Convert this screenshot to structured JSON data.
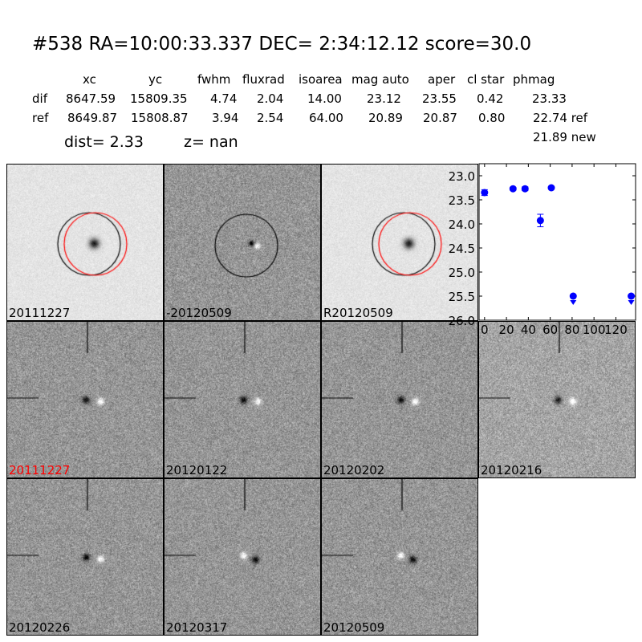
{
  "header": {
    "title": "#538   RA=10:00:33.337 DEC= 2:34:12.12      score=30.0"
  },
  "table": {
    "columns": [
      "xc",
      "yc",
      "fwhm",
      "fluxrad",
      "isoarea",
      "mag auto",
      "aper",
      "cl star",
      "phmag"
    ],
    "rows": [
      {
        "label": "dif",
        "values": [
          "8647.59",
          "15809.35",
          "4.74",
          "2.04",
          "14.00",
          "23.12",
          "23.55",
          "0.42",
          "23.33"
        ]
      },
      {
        "label": "ref",
        "values": [
          "8649.87",
          "15808.87",
          "3.94",
          "2.54",
          "64.00",
          "20.89",
          "20.87",
          "0.80",
          "22.74 ref"
        ]
      }
    ],
    "extra": "21.89 new",
    "dist": "dist=  2.33",
    "z": "z=   nan"
  },
  "stamps": [
    {
      "label": "20111227",
      "kind": "ref",
      "label_color": "#000000"
    },
    {
      "label": "-20120509",
      "kind": "diff",
      "label_color": "#000000"
    },
    {
      "label": "R20120509",
      "kind": "ref",
      "label_color": "#000000"
    },
    {
      "label": "20111227",
      "kind": "epoch",
      "label_color": "#ff0000"
    },
    {
      "label": "20120122",
      "kind": "epoch",
      "label_color": "#000000"
    },
    {
      "label": "20120202",
      "kind": "epoch",
      "label_color": "#000000"
    },
    {
      "label": "20120216",
      "kind": "epoch",
      "label_color": "#000000"
    },
    {
      "label": "20120226",
      "kind": "epoch",
      "label_color": "#000000"
    },
    {
      "label": "20120317",
      "kind": "epoch2",
      "label_color": "#000000"
    },
    {
      "label": "20120509",
      "kind": "epoch2",
      "label_color": "#000000"
    }
  ],
  "chart_data": {
    "type": "scatter",
    "x": [
      0,
      26,
      37,
      51,
      61,
      81,
      134
    ],
    "y": [
      23.35,
      23.27,
      23.27,
      23.93,
      23.25,
      25.5,
      25.5
    ],
    "yerr": [
      0.06,
      0.03,
      0.04,
      0.13,
      0.03,
      0,
      0
    ],
    "upper_limit": [
      false,
      false,
      false,
      false,
      false,
      true,
      true
    ],
    "xlim": [
      -5,
      138
    ],
    "ylim": [
      26.0,
      22.75
    ],
    "y_inverted": true,
    "xticks": [
      "0",
      "20",
      "40",
      "60",
      "80",
      "100",
      "120"
    ],
    "yticks": [
      "23.0",
      "23.5",
      "24.0",
      "24.5",
      "25.0",
      "25.5",
      "26.0"
    ],
    "color": "#0000ff",
    "grid": false
  }
}
